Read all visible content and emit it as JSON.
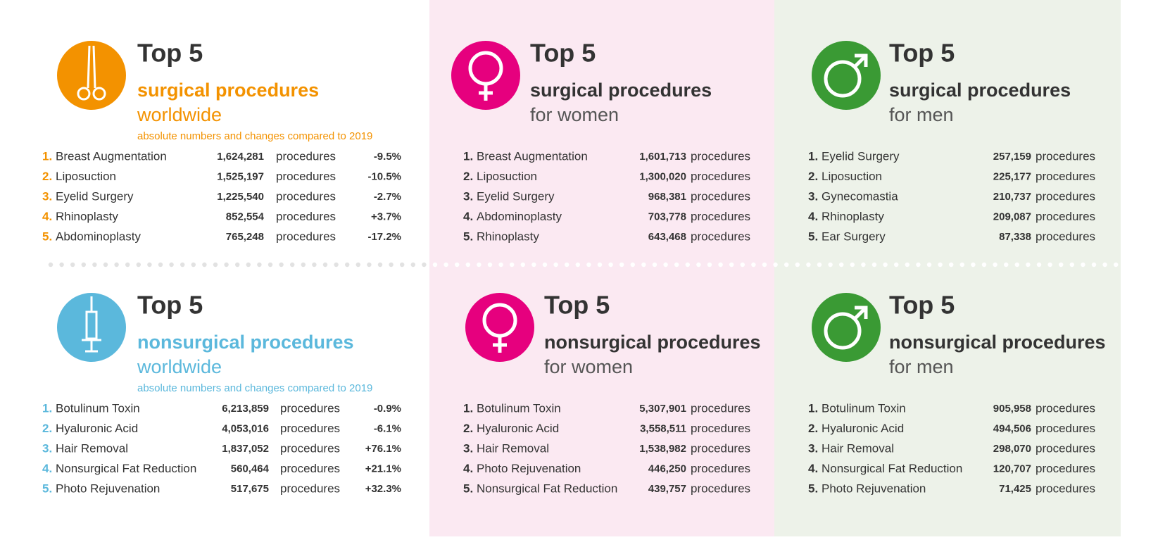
{
  "panels": [
    {
      "heading": "Top 5",
      "title": "surgical procedures",
      "scope": "worldwide",
      "note": "absolute numbers and changes compared to 2019",
      "rows": [
        {
          "rank": "1.",
          "name": "Breast Augmentation",
          "count": "1,624,281",
          "unit": "procedures",
          "change": "-9.5%"
        },
        {
          "rank": "2.",
          "name": "Liposuction",
          "count": "1,525,197",
          "unit": "procedures",
          "change": "-10.5%"
        },
        {
          "rank": "3.",
          "name": "Eyelid Surgery",
          "count": "1,225,540",
          "unit": "procedures",
          "change": "-2.7%"
        },
        {
          "rank": "4.",
          "name": "Rhinoplasty",
          "count": "852,554",
          "unit": "procedures",
          "change": "+3.7%"
        },
        {
          "rank": "5.",
          "name": "Abdominoplasty",
          "count": "765,248",
          "unit": "procedures",
          "change": "-17.2%"
        }
      ]
    },
    {
      "heading": "Top 5",
      "title": "surgical procedures",
      "scope": "for women",
      "rows": [
        {
          "rank": "1.",
          "name": "Breast Augmentation",
          "count": "1,601,713",
          "unit": "procedures"
        },
        {
          "rank": "2.",
          "name": "Liposuction",
          "count": "1,300,020",
          "unit": "procedures"
        },
        {
          "rank": "3.",
          "name": "Eyelid Surgery",
          "count": "968,381",
          "unit": "procedures"
        },
        {
          "rank": "4.",
          "name": "Abdominoplasty",
          "count": "703,778",
          "unit": "procedures"
        },
        {
          "rank": "5.",
          "name": "Rhinoplasty",
          "count": "643,468",
          "unit": "procedures"
        }
      ]
    },
    {
      "heading": "Top 5",
      "title": "surgical procedures",
      "scope": "for men",
      "rows": [
        {
          "rank": "1.",
          "name": "Eyelid Surgery",
          "count": "257,159",
          "unit": "procedures"
        },
        {
          "rank": "2.",
          "name": "Liposuction",
          "count": "225,177",
          "unit": "procedures"
        },
        {
          "rank": "3.",
          "name": "Gynecomastia",
          "count": "210,737",
          "unit": "procedures"
        },
        {
          "rank": "4.",
          "name": "Rhinoplasty",
          "count": "209,087",
          "unit": "procedures"
        },
        {
          "rank": "5.",
          "name": "Ear Surgery",
          "count": "87,338",
          "unit": "procedures"
        }
      ]
    },
    {
      "heading": "Top 5",
      "title": "nonsurgical procedures",
      "scope": "worldwide",
      "note": "absolute numbers and changes compared to 2019",
      "rows": [
        {
          "rank": "1.",
          "name": "Botulinum Toxin",
          "count": "6,213,859",
          "unit": "procedures",
          "change": "-0.9%"
        },
        {
          "rank": "2.",
          "name": "Hyaluronic Acid",
          "count": "4,053,016",
          "unit": "procedures",
          "change": "-6.1%"
        },
        {
          "rank": "3.",
          "name": "Hair Removal",
          "count": "1,837,052",
          "unit": "procedures",
          "change": "+76.1%"
        },
        {
          "rank": "4.",
          "name": "Nonsurgical Fat Reduction",
          "count": "560,464",
          "unit": "procedures",
          "change": "+21.1%"
        },
        {
          "rank": "5.",
          "name": "Photo Rejuvenation",
          "count": "517,675",
          "unit": "procedures",
          "change": "+32.3%"
        }
      ]
    },
    {
      "heading": "Top 5",
      "title": "nonsurgical procedures",
      "scope": "for women",
      "rows": [
        {
          "rank": "1.",
          "name": "Botulinum Toxin",
          "count": "5,307,901",
          "unit": "procedures"
        },
        {
          "rank": "2.",
          "name": "Hyaluronic Acid",
          "count": "3,558,511",
          "unit": "procedures"
        },
        {
          "rank": "3.",
          "name": "Hair Removal",
          "count": "1,538,982",
          "unit": "procedures"
        },
        {
          "rank": "4.",
          "name": "Photo Rejuvenation",
          "count": "446,250",
          "unit": "procedures"
        },
        {
          "rank": "5.",
          "name": "Nonsurgical Fat Reduction",
          "count": "439,757",
          "unit": "procedures"
        }
      ]
    },
    {
      "heading": "Top 5",
      "title": "nonsurgical procedures",
      "scope": "for men",
      "rows": [
        {
          "rank": "1.",
          "name": "Botulinum Toxin",
          "count": "905,958",
          "unit": "procedures"
        },
        {
          "rank": "2.",
          "name": "Hyaluronic Acid",
          "count": "494,506",
          "unit": "procedures"
        },
        {
          "rank": "3.",
          "name": "Hair Removal",
          "count": "298,070",
          "unit": "procedures"
        },
        {
          "rank": "4.",
          "name": "Nonsurgical Fat Reduction",
          "count": "120,707",
          "unit": "procedures"
        },
        {
          "rank": "5.",
          "name": "Photo Rejuvenation",
          "count": "71,425",
          "unit": "procedures"
        }
      ]
    }
  ]
}
